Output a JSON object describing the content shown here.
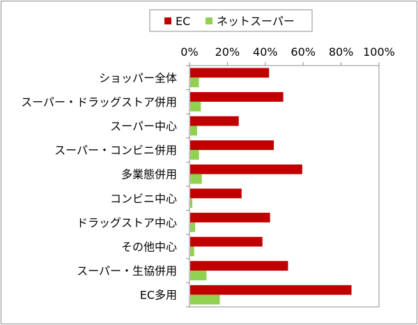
{
  "chart_data": {
    "type": "bar",
    "orientation": "horizontal",
    "categories": [
      "ショッパー全体",
      "スーパー・ドラッグストア併用",
      "スーパー中心",
      "スーパー・コンビニ併用",
      "多業態併用",
      "コンビニ中心",
      "ドラッグストア中心",
      "その他中心",
      "スーパー・生協併用",
      "EC多用"
    ],
    "series": [
      {
        "name": "EC",
        "color": "#c00000",
        "values": [
          42,
          49.5,
          26,
          44.5,
          59.5,
          27.5,
          42.5,
          38.5,
          52,
          85.5
        ]
      },
      {
        "name": "ネットスーパー",
        "color": "#92d050",
        "values": [
          5,
          6,
          4,
          5,
          6.5,
          1.5,
          3,
          2.5,
          9,
          16
        ]
      }
    ],
    "xlim": [
      0,
      100
    ],
    "xticks": [
      "0%",
      "20%",
      "40%",
      "60%",
      "80%",
      "100%"
    ],
    "legend_position": "top",
    "grid": false
  }
}
